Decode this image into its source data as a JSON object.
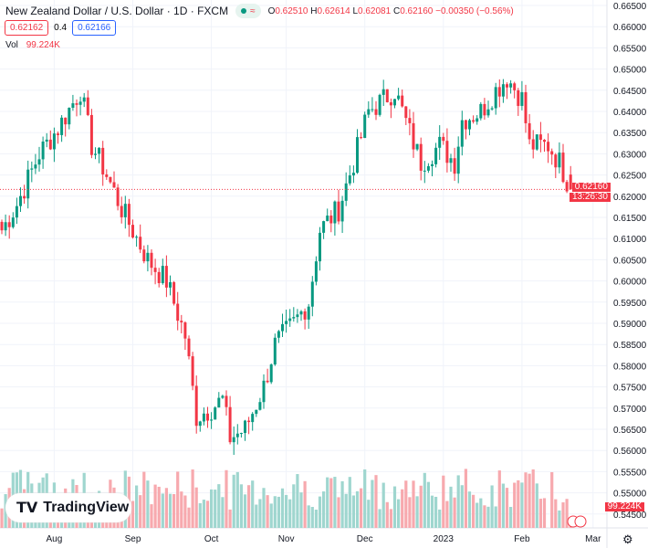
{
  "header": {
    "title": "New Zealand Dollar / U.S. Dollar · 1D · FXCM",
    "market_badge": "≈",
    "open_label": "O",
    "open": "0.62510",
    "high_label": "H",
    "high": "0.62614",
    "low_label": "L",
    "low": "0.62081",
    "close_label": "C",
    "close": "0.62160",
    "change": "−0.00350 (−0.56%)",
    "sell": "0.62162",
    "spread": "0.4",
    "buy": "0.62166",
    "vol_label": "Vol",
    "vol": "99.224K"
  },
  "logo": "TradingView",
  "price_tag": "0.62160",
  "time_tag": "13:26:30",
  "vol_tag": "99.224K",
  "colors": {
    "up": "#089981",
    "down": "#f23645",
    "vol_up": "#9fd6cf",
    "vol_down": "#f7a9ae"
  },
  "chart_data": {
    "type": "candlestick",
    "ylim": [
      0.545,
      0.665
    ],
    "yticks": [
      "0.66500",
      "0.66000",
      "0.65500",
      "0.65000",
      "0.64500",
      "0.64000",
      "0.63500",
      "0.63000",
      "0.62500",
      "0.62000",
      "0.61500",
      "0.61000",
      "0.60500",
      "0.60000",
      "0.59500",
      "0.59000",
      "0.58500",
      "0.58000",
      "0.57500",
      "0.57000",
      "0.56500",
      "0.56000",
      "0.55500",
      "0.55000",
      "0.54500"
    ],
    "xticks": [
      {
        "label": "Aug",
        "bar": 14
      },
      {
        "label": "Sep",
        "bar": 35
      },
      {
        "label": "Oct",
        "bar": 56
      },
      {
        "label": "Nov",
        "bar": 76
      },
      {
        "label": "Dec",
        "bar": 97
      },
      {
        "label": "2023",
        "bar": 118
      },
      {
        "label": "Feb",
        "bar": 139
      },
      {
        "label": "Mar",
        "bar": 158
      }
    ],
    "close_anchors": [
      [
        0,
        0.612
      ],
      [
        4,
        0.618
      ],
      [
        10,
        0.63
      ],
      [
        15,
        0.636
      ],
      [
        21,
        0.645
      ],
      [
        24,
        0.632
      ],
      [
        27,
        0.627
      ],
      [
        32,
        0.617
      ],
      [
        39,
        0.605
      ],
      [
        44,
        0.6
      ],
      [
        49,
        0.587
      ],
      [
        52,
        0.568
      ],
      [
        56,
        0.57
      ],
      [
        59,
        0.572
      ],
      [
        61,
        0.563
      ],
      [
        65,
        0.565
      ],
      [
        70,
        0.575
      ],
      [
        73,
        0.585
      ],
      [
        78,
        0.59
      ],
      [
        82,
        0.595
      ],
      [
        85,
        0.612
      ],
      [
        90,
        0.617
      ],
      [
        94,
        0.628
      ],
      [
        98,
        0.64
      ],
      [
        105,
        0.645
      ],
      [
        109,
        0.635
      ],
      [
        112,
        0.628
      ],
      [
        117,
        0.632
      ],
      [
        121,
        0.628
      ],
      [
        123,
        0.638
      ],
      [
        128,
        0.64
      ],
      [
        132,
        0.645
      ],
      [
        135,
        0.648
      ],
      [
        139,
        0.643
      ],
      [
        141,
        0.632
      ],
      [
        146,
        0.632
      ],
      [
        149,
        0.628
      ],
      [
        152,
        0.6216
      ]
    ]
  }
}
